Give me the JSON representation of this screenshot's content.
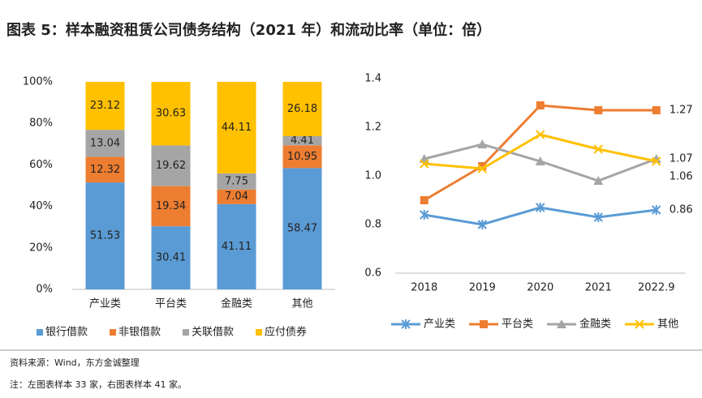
{
  "title": "图表 5：样本融资租赁公司债务结构（2021 年）和流动比率（单位：倍）",
  "source": "资料来源：Wind，东方金诚整理",
  "note": "注：左图表样本 33 家，右图表样本 41 家。",
  "chart_data": [
    {
      "type": "bar",
      "stacked": true,
      "categories": [
        "产业类",
        "平台类",
        "金融类",
        "其他"
      ],
      "series": [
        {
          "name": "银行借款",
          "color": "#5b9bd5",
          "values": [
            51.53,
            30.41,
            41.11,
            58.47
          ]
        },
        {
          "name": "非银借款",
          "color": "#ed7d31",
          "values": [
            12.32,
            19.34,
            7.04,
            10.95
          ]
        },
        {
          "name": "关联借款",
          "color": "#a5a5a5",
          "values": [
            13.04,
            19.62,
            7.75,
            4.41
          ]
        },
        {
          "name": "应付债券",
          "color": "#ffc000",
          "values": [
            23.12,
            30.63,
            44.11,
            26.18
          ]
        }
      ],
      "ylim": [
        0,
        100
      ],
      "yticks": [
        {
          "value": 0,
          "label": "0%"
        },
        {
          "value": 20,
          "label": "20%"
        },
        {
          "value": 40,
          "label": "40%"
        },
        {
          "value": 60,
          "label": "60%"
        },
        {
          "value": 80,
          "label": "80%"
        },
        {
          "value": 100,
          "label": "100%"
        }
      ],
      "grid": false,
      "legend": "bottom"
    },
    {
      "type": "line",
      "label_last": true,
      "categories": [
        "2018",
        "2019",
        "2020",
        "2021",
        "2022.9"
      ],
      "series": [
        {
          "name": "产业类",
          "color": "#5b9bd5",
          "marker": "star",
          "values": [
            0.84,
            0.8,
            0.87,
            0.83,
            0.86
          ]
        },
        {
          "name": "平台类",
          "color": "#ed7d31",
          "marker": "square",
          "values": [
            0.9,
            1.04,
            1.29,
            1.27,
            1.27
          ]
        },
        {
          "name": "金融类",
          "color": "#a5a5a5",
          "marker": "triangle",
          "values": [
            1.07,
            1.13,
            1.06,
            0.98,
            1.07
          ]
        },
        {
          "name": "其他",
          "color": "#ffc000",
          "marker": "x",
          "values": [
            1.05,
            1.03,
            1.17,
            1.11,
            1.06
          ]
        }
      ],
      "ylim": [
        0.6,
        1.4
      ],
      "yticks": [
        0.6,
        0.8,
        {
          "value": 1,
          "label": "1.0"
        },
        1.2,
        1.4
      ],
      "grid": false,
      "legend": "bottom"
    }
  ]
}
